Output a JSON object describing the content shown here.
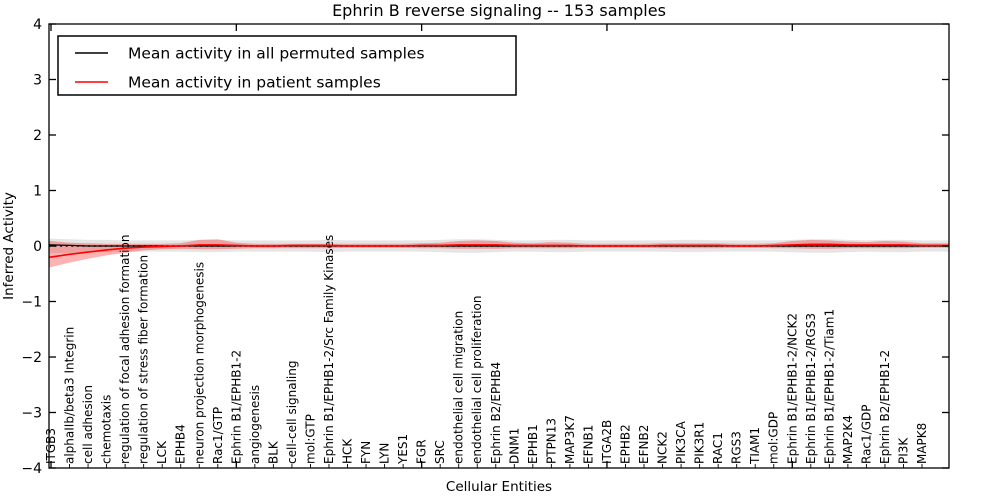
{
  "figure": {
    "title": "Ephrin B reverse signaling -- 153 samples",
    "xlabel": "Cellular Entities",
    "ylabel": "Inferred Activity",
    "background": "#ffffff",
    "frame_color": "#000000"
  },
  "legend": {
    "position": "upper left",
    "entries": [
      {
        "label": "Mean activity in all permuted samples",
        "color": "#000000"
      },
      {
        "label": "Mean activity in patient samples",
        "color": "#ff0000"
      }
    ]
  },
  "chart_data": {
    "type": "line",
    "title": "Ephrin B reverse signaling -- 153 samples",
    "xlabel": "Cellular Entities",
    "ylabel": "Inferred Activity",
    "ylim": [
      -4,
      4
    ],
    "ytick_values": [
      4,
      3,
      2,
      1,
      0,
      -1,
      -2,
      -3,
      -4
    ],
    "ytick_labels": [
      "4",
      "3",
      "2",
      "1",
      "0",
      "−1",
      "−2",
      "−3",
      "−4"
    ],
    "major_xtick_indices": [
      0,
      10,
      20,
      30,
      40
    ],
    "grid": false,
    "legend_position": "upper left",
    "zero_line": {
      "y": 0,
      "color": "#000000",
      "style": "dotted"
    },
    "categories": [
      "ITGB3",
      "alphaIIb/beta3 Integrin",
      "cell adhesion",
      "chemotaxis",
      "regulation of focal adhesion formation",
      "regulation of stress fiber formation",
      "LCK",
      "EPHB4",
      "neuron projection morphogenesis",
      "Rac1/GTP",
      "Ephrin B1/EPHB1-2",
      "angiogenesis",
      "BLK",
      "cell-cell signaling",
      "mol:GTP",
      "Ephrin B1/EPHB1-2/Src Family Kinases",
      "HCK",
      "FYN",
      "LYN",
      "YES1",
      "FGR",
      "SRC",
      "endothelial cell migration",
      "endothelial cell proliferation",
      "Ephrin B2/EPHB4",
      "DNM1",
      "EPHB1",
      "PTPN13",
      "MAP3K7",
      "EFNB1",
      "ITGA2B",
      "EPHB2",
      "EFNB2",
      "NCK2",
      "PIK3CA",
      "PIK3R1",
      "RAC1",
      "RGS3",
      "TIAM1",
      "mol:GDP",
      "Ephrin B1/EPHB1-2/NCK2",
      "Ephrin B1/EPHB1-2/RGS3",
      "Ephrin B1/EPHB1-2/Tiam1",
      "MAP2K4",
      "Rac1/GDP",
      "Ephrin B2/EPHB1-2",
      "PI3K",
      "MAPK8"
    ],
    "series": [
      {
        "name": "Mean activity in all permuted samples",
        "color": "#000000",
        "width": 1.3,
        "values": [
          0.02,
          0.01,
          0.0,
          0.0,
          0.0,
          0.0,
          0.0,
          0.0,
          0.0,
          0.0,
          0.0,
          0.0,
          0.0,
          0.0,
          0.0,
          0.0,
          0.0,
          0.0,
          0.0,
          0.0,
          0.0,
          0.0,
          0.0,
          0.0,
          0.0,
          0.0,
          0.0,
          0.0,
          0.0,
          0.0,
          0.0,
          0.0,
          0.0,
          0.0,
          0.0,
          0.0,
          0.0,
          0.0,
          0.0,
          0.0,
          0.0,
          0.0,
          0.0,
          0.0,
          0.0,
          0.0,
          0.0,
          0.0
        ]
      },
      {
        "name": "Mean activity in patient samples",
        "color": "#ff0000",
        "width": 1.6,
        "values": [
          -0.2,
          -0.15,
          -0.11,
          -0.07,
          -0.04,
          -0.02,
          -0.01,
          0.0,
          0.02,
          0.02,
          0.01,
          0.0,
          0.0,
          0.01,
          0.01,
          0.01,
          0.0,
          0.0,
          0.0,
          0.0,
          0.01,
          0.01,
          0.02,
          0.02,
          0.02,
          0.01,
          0.01,
          0.01,
          0.01,
          0.0,
          0.0,
          0.0,
          0.0,
          0.01,
          0.01,
          0.01,
          0.01,
          0.0,
          0.0,
          0.01,
          0.02,
          0.03,
          0.03,
          0.02,
          0.02,
          0.02,
          0.02,
          0.01
        ]
      }
    ],
    "bands": [
      {
        "name": "permuted samples range",
        "color": "rgba(0,0,0,0.10)",
        "upper": [
          0.13,
          0.12,
          0.11,
          0.11,
          0.1,
          0.1,
          0.1,
          0.1,
          0.11,
          0.11,
          0.1,
          0.1,
          0.1,
          0.1,
          0.1,
          0.11,
          0.1,
          0.1,
          0.1,
          0.1,
          0.1,
          0.11,
          0.12,
          0.12,
          0.11,
          0.1,
          0.1,
          0.11,
          0.11,
          0.1,
          0.1,
          0.1,
          0.1,
          0.1,
          0.11,
          0.11,
          0.1,
          0.1,
          0.1,
          0.1,
          0.11,
          0.12,
          0.12,
          0.11,
          0.1,
          0.11,
          0.11,
          0.1
        ],
        "lower": [
          -0.13,
          -0.12,
          -0.11,
          -0.11,
          -0.1,
          -0.1,
          -0.1,
          -0.1,
          -0.11,
          -0.11,
          -0.1,
          -0.1,
          -0.1,
          -0.1,
          -0.1,
          -0.11,
          -0.1,
          -0.1,
          -0.1,
          -0.1,
          -0.1,
          -0.11,
          -0.12,
          -0.12,
          -0.11,
          -0.1,
          -0.1,
          -0.11,
          -0.11,
          -0.1,
          -0.1,
          -0.1,
          -0.1,
          -0.1,
          -0.11,
          -0.11,
          -0.1,
          -0.1,
          -0.1,
          -0.1,
          -0.11,
          -0.12,
          -0.12,
          -0.11,
          -0.1,
          -0.11,
          -0.11,
          -0.1
        ]
      },
      {
        "name": "patient samples range",
        "color": "rgba(255,0,0,0.30)",
        "upper": [
          0.09,
          0.06,
          0.05,
          0.04,
          0.04,
          0.04,
          0.04,
          0.05,
          0.11,
          0.12,
          0.06,
          0.04,
          0.04,
          0.04,
          0.04,
          0.04,
          0.04,
          0.04,
          0.04,
          0.04,
          0.05,
          0.06,
          0.09,
          0.1,
          0.09,
          0.06,
          0.05,
          0.07,
          0.06,
          0.04,
          0.04,
          0.04,
          0.04,
          0.05,
          0.05,
          0.05,
          0.05,
          0.04,
          0.04,
          0.05,
          0.09,
          0.11,
          0.1,
          0.08,
          0.07,
          0.09,
          0.08,
          0.05
        ],
        "lower": [
          -0.38,
          -0.3,
          -0.23,
          -0.17,
          -0.12,
          -0.08,
          -0.06,
          -0.05,
          -0.06,
          -0.06,
          -0.05,
          -0.04,
          -0.04,
          -0.04,
          -0.04,
          -0.04,
          -0.03,
          -0.03,
          -0.03,
          -0.03,
          -0.04,
          -0.04,
          -0.05,
          -0.05,
          -0.05,
          -0.04,
          -0.04,
          -0.04,
          -0.04,
          -0.03,
          -0.03,
          -0.03,
          -0.03,
          -0.04,
          -0.04,
          -0.04,
          -0.04,
          -0.03,
          -0.03,
          -0.04,
          -0.04,
          -0.05,
          -0.05,
          -0.04,
          -0.04,
          -0.04,
          -0.04,
          -0.03
        ]
      }
    ]
  }
}
